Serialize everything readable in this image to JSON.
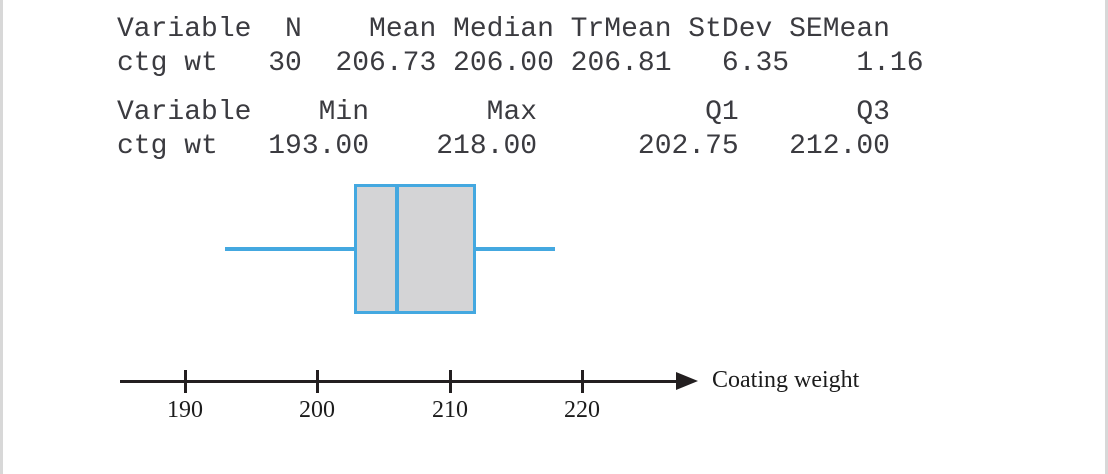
{
  "output_tables": {
    "table1": {
      "header_line": "Variable  N    Mean Median TrMean StDev SEMean",
      "value_line": "ctg wt   30  206.73 206.00 206.81   6.35    1.16",
      "headers": [
        "Variable",
        "N",
        "Mean",
        "Median",
        "TrMean",
        "StDev",
        "SEMean"
      ],
      "values": [
        "ctg wt",
        "30",
        "206.73",
        "206.00",
        "206.81",
        "6.35",
        "1.16"
      ]
    },
    "table2": {
      "header_line": "Variable    Min       Max          Q1       Q3",
      "value_line": "ctg wt   193.00    218.00      202.75   212.00",
      "headers": [
        "Variable",
        "Min",
        "Max",
        "Q1",
        "Q3"
      ],
      "values": [
        "ctg wt",
        "193.00",
        "218.00",
        "202.75",
        "212.00"
      ]
    }
  },
  "chart_data": {
    "type": "boxplot",
    "orientation": "horizontal",
    "variable": "ctg wt",
    "stats": {
      "n": 30,
      "mean": 206.73,
      "median": 206.0,
      "trmean": 206.81,
      "stdev": 6.35,
      "semean": 1.16,
      "min": 193.0,
      "max": 218.0,
      "q1": 202.75,
      "q3": 212.0
    },
    "axis": {
      "label": "Coating weight",
      "ticks": [
        190,
        200,
        210,
        220
      ],
      "range": [
        185,
        228
      ],
      "arrow": true
    },
    "legend": "none",
    "grid": false
  },
  "colors": {
    "box_stroke": "#44a8e0",
    "box_fill": "#d4d4d6",
    "axis": "#231f20",
    "mono_text": "#3b3b40",
    "serif_text": "#1c1c1c"
  }
}
